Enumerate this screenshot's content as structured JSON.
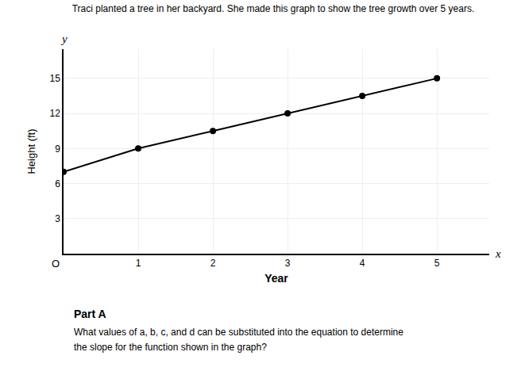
{
  "chart_data": {
    "type": "line",
    "title": "Traci planted a tree in her backyard. She made this graph to show the tree growth over 5 years.",
    "xlabel": "Year",
    "ylabel": "Height (ft)",
    "x": [
      0,
      1,
      2,
      3,
      4,
      5
    ],
    "values": [
      7,
      9,
      10.5,
      12,
      13.5,
      15
    ],
    "color": "#000000",
    "marker": "circle",
    "xlim": [
      0,
      5.7
    ],
    "ylim": [
      0,
      17.5
    ],
    "xticks": [
      1,
      2,
      3,
      4,
      5
    ],
    "yticks": [
      3,
      6,
      9,
      12,
      15
    ],
    "grid": true,
    "annotations": [
      "O",
      "x",
      "y",
      "Part A",
      "What values of a, b, c, and d can be substituted into the equation to determine",
      "the slope for the function shown in the graph?"
    ]
  }
}
